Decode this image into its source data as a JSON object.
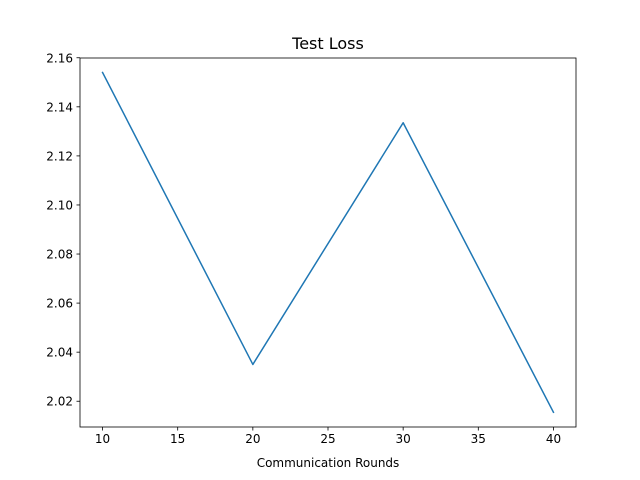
{
  "chart_data": {
    "type": "line",
    "title": "Test Loss",
    "xlabel": "Communication Rounds",
    "ylabel": "",
    "x": [
      10,
      20,
      30,
      40
    ],
    "series": [
      {
        "values": [
          2.154,
          2.035,
          2.1335,
          2.0155
        ],
        "color": "#1f77b4"
      }
    ],
    "xlim": [
      8.5,
      41.5
    ],
    "ylim": [
      2.0095,
      2.1599
    ],
    "xticks": [
      10,
      15,
      20,
      25,
      30,
      35,
      40
    ],
    "xtick_labels": [
      "10",
      "15",
      "20",
      "25",
      "30",
      "35",
      "40"
    ],
    "yticks": [
      2.02,
      2.04,
      2.06,
      2.08,
      2.1,
      2.12,
      2.14,
      2.16
    ],
    "ytick_labels": [
      "2.02",
      "2.04",
      "2.06",
      "2.08",
      "2.10",
      "2.12",
      "2.14",
      "2.16"
    ],
    "grid": false,
    "legend": "none"
  }
}
